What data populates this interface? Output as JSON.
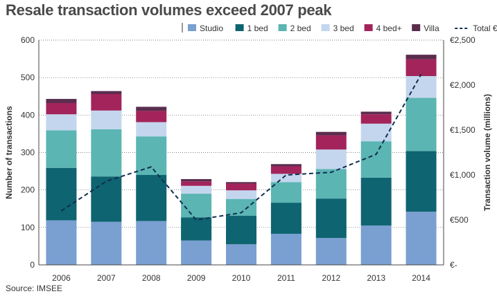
{
  "title": "Resale transaction volumes exceed 2007 peak",
  "source": "Source: IMSEE",
  "chart_data": {
    "type": "bar",
    "stacked": true,
    "title": "Resale transaction volumes exceed 2007 peak",
    "categories": [
      "2006",
      "2007",
      "2008",
      "2009",
      "2010",
      "2011",
      "2012",
      "2013",
      "2014"
    ],
    "series": [
      {
        "name": "Studio",
        "color": "#7a9fd1",
        "values": [
          119,
          115,
          117,
          65,
          55,
          83,
          72,
          105,
          142
        ]
      },
      {
        "name": "1 bed",
        "color": "#0e6470",
        "values": [
          140,
          121,
          123,
          62,
          76,
          83,
          105,
          128,
          162
        ]
      },
      {
        "name": "2 bed",
        "color": "#5bb5b2",
        "values": [
          100,
          126,
          103,
          63,
          45,
          55,
          79,
          97,
          142
        ]
      },
      {
        "name": "3 bed",
        "color": "#c4d6ee",
        "values": [
          43,
          50,
          38,
          21,
          23,
          22,
          52,
          47,
          58
        ]
      },
      {
        "name": "4 bed+",
        "color": "#a3245b",
        "values": [
          30,
          44,
          30,
          12,
          18,
          20,
          38,
          25,
          45
        ]
      },
      {
        "name": "Villa",
        "color": "#5a2d4e",
        "values": [
          11,
          8,
          11,
          6,
          4,
          6,
          9,
          7,
          12
        ]
      }
    ],
    "line_series": {
      "name": "Total € volume",
      "axis": "right",
      "color": "#0f2d50",
      "style": "dashed",
      "values": [
        600,
        930,
        1090,
        500,
        580,
        1000,
        1030,
        1230,
        2120
      ]
    },
    "ylabel": "Number of transactions",
    "ylim": [
      0,
      600
    ],
    "yticks": [
      "0",
      "100",
      "200",
      "300",
      "400",
      "500",
      "600"
    ],
    "y2label": "Transaction volume (millions)",
    "y2lim": [
      0,
      2500
    ],
    "y2ticks": [
      "€-",
      "€500",
      "€1,000",
      "€1,500",
      "€2,000",
      "€2,500"
    ],
    "grid": true,
    "legend": "top"
  }
}
